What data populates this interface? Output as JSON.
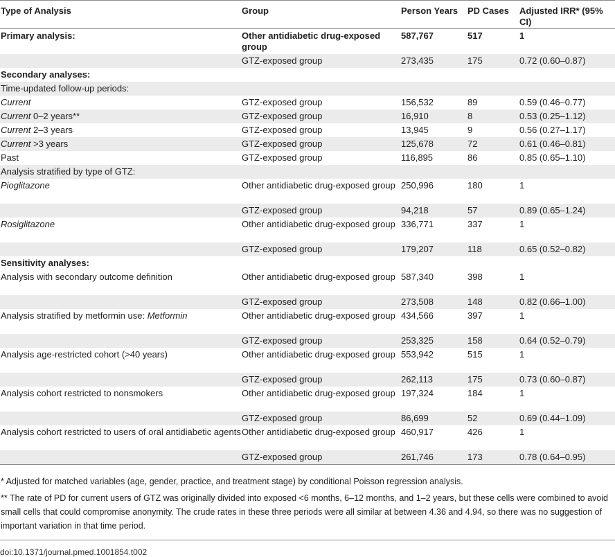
{
  "table": {
    "headers": {
      "type": "Type of Analysis",
      "group": "Group",
      "person_years": "Person Years",
      "pd_cases": "PD Cases",
      "irr": "Adjusted IRR* (95% CI)"
    },
    "rows": [
      {
        "type": "Primary analysis:",
        "group": "Other antidiabetic drug-exposed group",
        "py": "587,767",
        "pd": "517",
        "irr": "1"
      },
      {
        "type": "",
        "group": "GTZ-exposed group",
        "py": "273,435",
        "pd": "175",
        "irr": "0.72 (0.60–0.87)"
      },
      {
        "type": "Secondary analyses:",
        "group": "",
        "py": "",
        "pd": "",
        "irr": ""
      },
      {
        "type": "Time-updated follow-up periods:",
        "group": "",
        "py": "",
        "pd": "",
        "irr": ""
      },
      {
        "type_italic": "Current",
        "type_rest": "",
        "group": "GTZ-exposed group",
        "py": "156,532",
        "pd": "89",
        "irr": "0.59 (0.46–0.77)"
      },
      {
        "type_italic": "Current",
        "type_rest": " 0–2 years**",
        "group": "GTZ-exposed group",
        "py": "16,910",
        "pd": "8",
        "irr": "0.53 (0.25–1.12)"
      },
      {
        "type_italic": "Current",
        "type_rest": " 2–3 years",
        "group": "GTZ-exposed group",
        "py": "13,945",
        "pd": "9",
        "irr": "0.56 (0.27–1.17)"
      },
      {
        "type_italic": "Current",
        "type_rest": " >3 years",
        "group": "GTZ-exposed group",
        "py": "125,678",
        "pd": "72",
        "irr": "0.61 (0.46–0.81)"
      },
      {
        "type": "Past",
        "group": "GTZ-exposed group",
        "py": "116,895",
        "pd": "86",
        "irr": "0.85 (0.65–1.10)"
      },
      {
        "type": "Analysis stratified by type of GTZ:",
        "group": "",
        "py": "",
        "pd": "",
        "irr": ""
      },
      {
        "type_italic": "Pioglitazone",
        "type_rest": "",
        "group": "Other antidiabetic drug-exposed group",
        "py": "250,996",
        "pd": "180",
        "irr": "1"
      },
      {
        "type": "",
        "group": "GTZ-exposed group",
        "py": "94,218",
        "pd": "57",
        "irr": "0.89 (0.65–1.24)"
      },
      {
        "type_italic": "Rosiglitazone",
        "type_rest": "",
        "group": "Other antidiabetic drug-exposed group",
        "py": "336,771",
        "pd": "337",
        "irr": "1"
      },
      {
        "type": "",
        "group": "GTZ-exposed group",
        "py": "179,207",
        "pd": "118",
        "irr": "0.65 (0.52–0.82)"
      },
      {
        "type": "Sensitivity analyses:",
        "group": "",
        "py": "",
        "pd": "",
        "irr": ""
      },
      {
        "type": "Analysis with secondary outcome definition",
        "group": "Other antidiabetic drug-exposed group",
        "py": "587,340",
        "pd": "398",
        "irr": "1"
      },
      {
        "type": "",
        "group": "GTZ-exposed group",
        "py": "273,508",
        "pd": "148",
        "irr": "0.82 (0.66–1.00)"
      },
      {
        "type_rest_first": "Analysis stratified by metformin use: ",
        "type_italic_after": "Metformin",
        "group": "Other antidiabetic drug-exposed group",
        "py": "434,566",
        "pd": "397",
        "irr": "1"
      },
      {
        "type": "",
        "group": "GTZ-exposed group",
        "py": "253,325",
        "pd": "158",
        "irr": "0.64 (0.52–0.79)"
      },
      {
        "type": "Analysis age-restricted cohort (>40 years)",
        "group": "Other antidiabetic drug-exposed group",
        "py": "553,942",
        "pd": "515",
        "irr": "1"
      },
      {
        "type": "",
        "group": "GTZ-exposed group",
        "py": "262,113",
        "pd": "175",
        "irr": "0.73 (0.60–0.87)"
      },
      {
        "type": "Analysis cohort restricted to nonsmokers",
        "group": "Other antidiabetic drug-exposed group",
        "py": "197,324",
        "pd": "184",
        "irr": "1"
      },
      {
        "type": "",
        "group": "GTZ-exposed group",
        "py": "86,699",
        "pd": "52",
        "irr": "0.69 (0.44–1.09)"
      },
      {
        "type": "Analysis cohort restricted to users of oral antidiabetic agents",
        "group": "Other antidiabetic drug-exposed group",
        "py": "460,917",
        "pd": "426",
        "irr": "1"
      },
      {
        "type": "",
        "group": "GTZ-exposed group",
        "py": "261,746",
        "pd": "173",
        "irr": "0.78 (0.64–0.95)"
      }
    ]
  },
  "footnotes": [
    "* Adjusted for matched variables (age, gender, practice, and treatment stage) by conditional Poisson regression analysis.",
    "** The rate of PD for current users of GTZ was originally divided into exposed <6 months, 6–12 months, and 1–2 years, but these cells were combined to avoid small cells that could compromise anonymity. The crude rates in these three periods were all similar at between 4.36 and 4.94, so there was no suggestion of important variation in that time period."
  ],
  "doi": "doi:10.1371/journal.pmed.1001854.t002"
}
